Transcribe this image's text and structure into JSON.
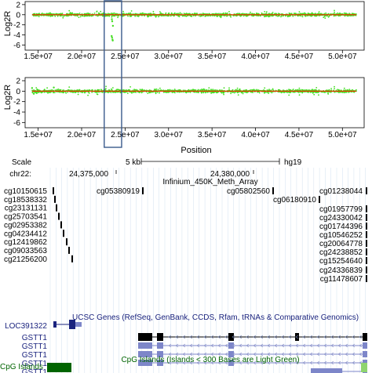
{
  "chart_data": [
    {
      "type": "scatter",
      "ylabel": "Log2R",
      "xlabel": "",
      "xlim": [
        13500000,
        52500000
      ],
      "ylim": [
        -7,
        2.6
      ],
      "yticks": [
        2,
        0,
        -2,
        -4,
        -6
      ],
      "xticks": [
        15000000,
        20000000,
        25000000,
        30000000,
        35000000,
        40000000,
        45000000,
        50000000
      ],
      "xtick_labels": [
        "1.5e+07",
        "2.0e+07",
        "2.5e+07",
        "3.0e+07",
        "3.5e+07",
        "4.0e+07",
        "4.5e+07",
        "5.0e+07"
      ],
      "series": [
        {
          "kind": "points",
          "color": "#44dd22"
        },
        {
          "kind": "segment",
          "color": "#ff2200",
          "value": 0
        }
      ],
      "highlight_region": {
        "x": [
          22600000,
          24600000
        ],
        "color": "#3a5a8c"
      },
      "outliers": [
        {
          "x": 23500000,
          "y": -4.5
        },
        {
          "x": 23550000,
          "y": -4.9
        },
        {
          "x": 23450000,
          "y": -4.2
        },
        {
          "x": 23600000,
          "y": -2.2
        },
        {
          "x": 23520000,
          "y": -1.3
        },
        {
          "x": 23480000,
          "y": -0.9
        },
        {
          "x": 23580000,
          "y": -5.1
        }
      ]
    },
    {
      "type": "scatter",
      "ylabel": "Log2R",
      "xlabel": "Position",
      "xlim": [
        13500000,
        52500000
      ],
      "ylim": [
        -7,
        2.6
      ],
      "yticks": [
        2,
        0,
        -2,
        -4,
        -6
      ],
      "xticks": [
        15000000,
        20000000,
        25000000,
        30000000,
        35000000,
        40000000,
        45000000,
        50000000
      ],
      "xtick_labels": [
        "1.5e+07",
        "2.0e+07",
        "2.5e+07",
        "3.0e+07",
        "3.5e+07",
        "4.0e+07",
        "4.5e+07",
        "5.0e+07"
      ],
      "series": [
        {
          "kind": "points",
          "color": "#44dd22"
        },
        {
          "kind": "segment",
          "color": "#ff2200",
          "value": 0
        }
      ],
      "highlight_region": {
        "x": [
          22600000,
          24600000
        ],
        "color": "#3a5a8c"
      },
      "outliers": [
        {
          "x": 14300000,
          "y": 0.6
        },
        {
          "x": 14500000,
          "y": -0.5
        },
        {
          "x": 16800000,
          "y": 0.7
        }
      ]
    }
  ],
  "browser": {
    "scale_label": "Scale",
    "scale_value": "5 kb",
    "assembly": "hg19",
    "chrom_label": "chr22:",
    "pos_left": "24,375,000",
    "pos_right": "24,380,000",
    "array_track": "Infinium_450K_Meth_Array",
    "probes_left": [
      "cg10150615",
      "cg18538332",
      "cg23131131",
      "cg25703541",
      "cg02953382",
      "cg04234412",
      "cg12419862",
      "cg09033563",
      "cg21256200"
    ],
    "probes_mid": [
      "cg05380919",
      "cg05802560",
      "cg06180910"
    ],
    "probes_right": [
      "cg01238044",
      "cg01957799",
      "cg24330042",
      "cg01744396",
      "cg10546252",
      "cg20064778",
      "cg24238852",
      "cg15254640",
      "cg24336839",
      "cg11478607"
    ],
    "genes_track": "UCSC Genes (RefSeq, GenBank, CCDS, Rfam, tRNAs & Comparative Genomics)",
    "gene_loc": "LOC391322",
    "gene_gstt": [
      "GSTT1",
      "GSTT1",
      "GSTT1",
      "GSTT1",
      "GSTT1"
    ],
    "cpg_track": "CpG Islands (Islands < 300 Bases are Light Green)",
    "cpg_label": "CpG Islands",
    "colors": {
      "gene": "#1a237e",
      "gene_light": "#7d86c9",
      "cpg_dark": "#006400",
      "cpg_light": "#8fd46f",
      "grid": "#d9e6f2"
    }
  }
}
